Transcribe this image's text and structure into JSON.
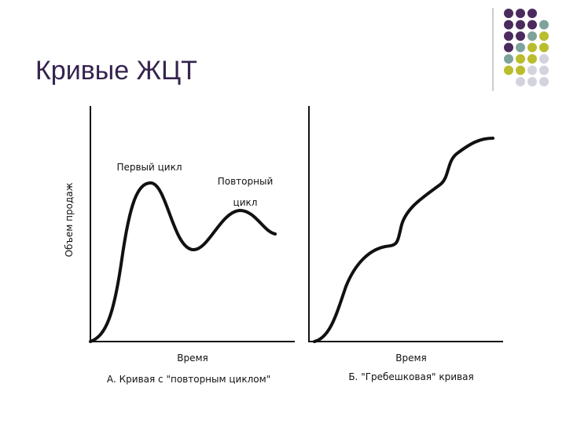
{
  "title": "Кривые ЖЦТ",
  "panels": [
    {
      "y_label": "Объем продаж",
      "annotations": [
        "Первый цикл",
        "Повторный",
        "цикл"
      ],
      "x_label": "Время",
      "caption": "А. Кривая с \"повторным циклом\""
    },
    {
      "x_label": "Время",
      "caption": "Б. \"Гребешковая\" кривая"
    }
  ]
}
